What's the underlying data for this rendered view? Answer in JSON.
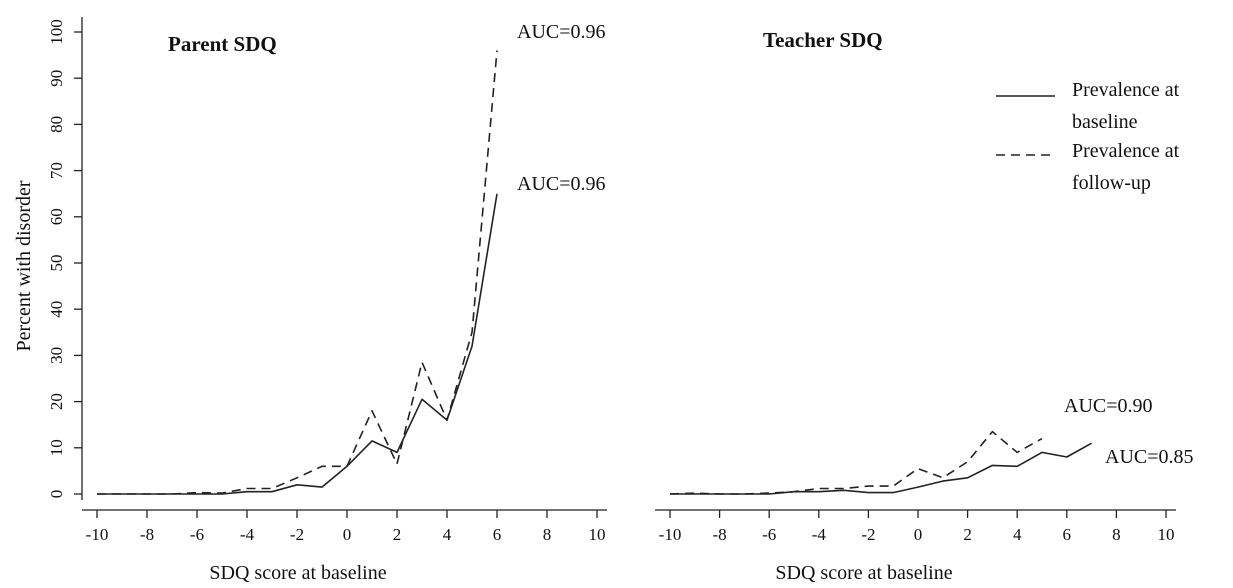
{
  "chart_data": {
    "type": "line",
    "y_axis_label": "Percent with disorder",
    "legend": [
      {
        "line1": "Prevalence at",
        "line2": "baseline",
        "style": "solid"
      },
      {
        "line1": "Prevalence at",
        "line2": "follow-up",
        "style": "dashed"
      }
    ],
    "panels": [
      {
        "title": "Parent SDQ",
        "xlabel": "SDQ score at baseline",
        "xlim": [
          -10,
          10
        ],
        "ylim": [
          0,
          100
        ],
        "x_ticks": [
          -10,
          -8,
          -6,
          -4,
          -2,
          0,
          2,
          4,
          6,
          8,
          10
        ],
        "y_ticks": [
          0,
          10,
          20,
          30,
          40,
          50,
          60,
          70,
          80,
          90,
          100
        ],
        "series": [
          {
            "style": "solid",
            "x": [
              -10,
              -9,
              -8,
              -7,
              -6,
              -5,
              -4,
              -3,
              -2,
              -1,
              0,
              1,
              2,
              3,
              4,
              5,
              6
            ],
            "values": [
              0,
              0,
              0,
              0,
              0,
              0,
              0.5,
              0.5,
              2,
              1.5,
              6,
              11.5,
              9,
              20.5,
              16,
              32,
              65
            ]
          },
          {
            "style": "dashed",
            "x": [
              -10,
              -9,
              -8,
              -7,
              -6,
              -5,
              -4,
              -3,
              -2,
              -1,
              0,
              1,
              2,
              3,
              4,
              5,
              6
            ],
            "values": [
              0,
              0,
              0,
              0,
              0.3,
              0.2,
              1.2,
              1.2,
              3.5,
              6,
              6,
              18,
              6.5,
              28.5,
              16,
              35,
              96
            ]
          }
        ],
        "annotations": [
          {
            "text": "AUC=0.96",
            "series": "dashed"
          },
          {
            "text": "AUC=0.96",
            "series": "solid"
          }
        ]
      },
      {
        "title": "Teacher SDQ",
        "xlabel": "SDQ score at baseline",
        "xlim": [
          -10,
          10
        ],
        "ylim": [
          0,
          100
        ],
        "x_ticks": [
          -10,
          -8,
          -6,
          -4,
          -2,
          0,
          2,
          4,
          6,
          8,
          10
        ],
        "y_ticks": [
          0,
          10,
          20,
          30,
          40,
          50,
          60,
          70,
          80,
          90,
          100
        ],
        "series": [
          {
            "style": "solid",
            "x": [
              -10,
              -9,
              -8,
              -7,
              -6,
              -5,
              -4,
              -3,
              -2,
              -1,
              0,
              1,
              2,
              3,
              4,
              5,
              6,
              7
            ],
            "values": [
              0,
              0,
              0,
              0,
              0,
              0.5,
              0.5,
              0.8,
              0.3,
              0.3,
              1.5,
              2.8,
              3.5,
              6.2,
              6,
              9,
              8,
              11
            ]
          },
          {
            "style": "dashed",
            "x": [
              -10,
              -9,
              -8,
              -7,
              -6,
              -5,
              -4,
              -3,
              -2,
              -1,
              0,
              1,
              2,
              3,
              4,
              5
            ],
            "values": [
              0,
              0.2,
              0,
              0,
              0.2,
              0.5,
              1.2,
              1.2,
              1.7,
              1.7,
              5.5,
              3.5,
              7,
              13.5,
              9,
              12
            ]
          }
        ],
        "annotations": [
          {
            "text": "AUC=0.90",
            "series": "dashed"
          },
          {
            "text": "AUC=0.85",
            "series": "solid"
          }
        ]
      }
    ]
  }
}
